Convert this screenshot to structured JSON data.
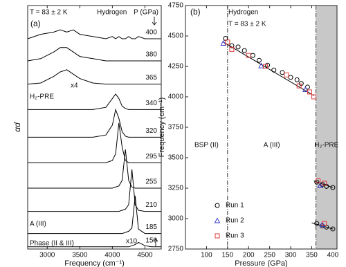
{
  "chart_data": [
    {
      "type": "line",
      "panel_label": "(a)",
      "subtitle": "T = 83 ± 2 K",
      "title": "Hydrogen",
      "series_title": "P (GPa)",
      "xlabel": "Frequency (cm⁻¹)",
      "ylabel": "αd",
      "xlim": [
        2700,
        4750
      ],
      "xticks": [
        3000,
        3500,
        4000,
        4500
      ],
      "ylim": [
        0,
        11
      ],
      "x": [
        2700,
        2900,
        3100,
        3200,
        3300,
        3400,
        3500,
        3700,
        3900,
        4000,
        4050,
        4100,
        4150,
        4200,
        4250,
        4300,
        4350,
        4400,
        4500,
        4600,
        4750
      ],
      "series": [
        {
          "name": "400",
          "color": "#000000",
          "values": [
            9.5,
            9.7,
            9.8,
            9.9,
            9.8,
            9.9,
            9.7,
            9.6,
            9.5,
            9.6,
            9.5,
            9.6,
            9.5,
            9.5,
            9.6,
            9.5,
            9.5,
            9.6,
            9.5,
            9.5,
            9.5
          ]
        },
        {
          "name": "380",
          "color": "#000000",
          "values": [
            8.5,
            8.6,
            8.9,
            9.1,
            9.1,
            8.9,
            8.7,
            8.6,
            8.5,
            8.5,
            8.5,
            8.5,
            8.5,
            8.5,
            8.5,
            8.5,
            8.5,
            8.5,
            8.5,
            8.5,
            8.5
          ]
        },
        {
          "name": "365",
          "color": "#000000",
          "values": [
            7.45,
            7.5,
            7.8,
            8.0,
            8.1,
            7.9,
            7.7,
            7.5,
            7.45,
            7.45,
            7.45,
            7.45,
            7.45,
            7.45,
            7.45,
            7.45,
            7.45,
            7.45,
            7.45,
            7.45,
            7.45
          ]
        },
        {
          "name": "340",
          "color": "#000000",
          "values": [
            6.3,
            6.3,
            6.3,
            6.3,
            6.3,
            6.3,
            6.3,
            6.3,
            6.4,
            6.8,
            7.0,
            6.8,
            6.45,
            6.35,
            6.3,
            6.3,
            6.3,
            6.3,
            6.3,
            6.3,
            6.3
          ]
        },
        {
          "name": "320",
          "color": "#000000",
          "values": [
            5.05,
            5.05,
            5.05,
            5.05,
            5.05,
            5.05,
            5.05,
            5.05,
            5.15,
            5.6,
            6.3,
            5.9,
            5.3,
            5.1,
            5.05,
            5.05,
            5.05,
            5.05,
            5.05,
            5.05,
            5.05
          ]
        },
        {
          "name": "295",
          "color": "#000000",
          "values": [
            3.9,
            3.9,
            3.9,
            3.9,
            3.9,
            3.9,
            3.9,
            3.9,
            3.9,
            4.0,
            4.3,
            5.7,
            4.6,
            4.0,
            3.9,
            3.9,
            3.9,
            3.9,
            3.9,
            3.9,
            3.9
          ]
        },
        {
          "name": "255",
          "color": "#000000",
          "values": [
            2.75,
            2.75,
            2.75,
            2.75,
            2.75,
            2.75,
            2.75,
            2.75,
            2.75,
            2.75,
            2.8,
            2.85,
            3.1,
            4.5,
            3.1,
            2.8,
            2.75,
            2.75,
            2.75,
            2.75,
            2.75
          ]
        },
        {
          "name": "210",
          "color": "#000000",
          "values": [
            1.7,
            1.7,
            1.7,
            1.7,
            1.7,
            1.7,
            1.7,
            1.7,
            1.7,
            1.7,
            1.7,
            1.7,
            1.75,
            1.8,
            2.0,
            3.6,
            2.0,
            1.75,
            1.7,
            1.7,
            1.7
          ]
        },
        {
          "name": "185",
          "color": "#000000",
          "values": [
            0.7,
            0.7,
            0.7,
            0.7,
            0.7,
            0.7,
            0.7,
            0.7,
            0.7,
            0.7,
            0.7,
            0.7,
            0.7,
            0.75,
            0.8,
            0.95,
            2.4,
            0.9,
            0.7,
            0.7,
            0.7
          ]
        },
        {
          "name": "150",
          "color": "#000000",
          "values": [
            0.1,
            0.1,
            0.1,
            0.1,
            0.1,
            0.1,
            0.1,
            0.1,
            0.1,
            0.1,
            0.1,
            0.1,
            0.1,
            0.1,
            0.1,
            0.15,
            0.2,
            0.3,
            0.15,
            0.1,
            0.1
          ]
        }
      ],
      "annotations": [
        "x4",
        "H₂-PRE",
        "A (III)",
        "Phase (II & III)",
        "x10"
      ]
    },
    {
      "type": "scatter",
      "panel_label": "(b)",
      "title": "Hydrogen",
      "subtitle": "T = 83 ± 2 K",
      "xlabel": "Pressure (GPa)",
      "ylabel": "Frequency (cm⁻¹)",
      "xlim": [
        50,
        410
      ],
      "xticks": [
        100,
        150,
        200,
        250,
        300,
        350,
        400
      ],
      "ylim": [
        2750,
        4750
      ],
      "yticks": [
        2750,
        3000,
        3250,
        3500,
        3750,
        4000,
        4250,
        4500,
        4750
      ],
      "phase_boundaries": [
        150,
        360
      ],
      "regions": [
        "BSP (II)",
        "A (III)",
        "H₂-PRE"
      ],
      "series": [
        {
          "name": "Run 1",
          "color": "#000000",
          "marker": "circle",
          "x": [
            145,
            160,
            175,
            190,
            210,
            225,
            245,
            260,
            280,
            300,
            315,
            325,
            340,
            362,
            375,
            385,
            400,
            362,
            375,
            385,
            400
          ],
          "values": [
            4480,
            4420,
            4410,
            4380,
            4340,
            4300,
            4260,
            4220,
            4200,
            4160,
            4140,
            4110,
            4080,
            3300,
            3280,
            3265,
            3255,
            2960,
            2940,
            2930,
            2915
          ]
        },
        {
          "name": "Run 2",
          "color": "#3a3ac8",
          "marker": "triangle",
          "x": [
            140,
            230,
            335,
            370,
            375
          ],
          "values": [
            4440,
            4255,
            4060,
            3270,
            2950
          ]
        },
        {
          "name": "Run 3",
          "color": "#e03a3a",
          "marker": "square",
          "x": [
            150,
            160,
            200,
            240,
            290,
            320,
            345,
            355,
            365,
            380,
            380
          ],
          "values": [
            4450,
            4390,
            4340,
            4250,
            4180,
            4090,
            4040,
            4000,
            3310,
            3290,
            2960
          ]
        }
      ],
      "fits": [
        {
          "x": [
            140,
            355
          ],
          "values": [
            4450,
            4010
          ]
        },
        {
          "x": [
            355,
            400
          ],
          "values": [
            3310,
            3255
          ]
        },
        {
          "x": [
            350,
            400
          ],
          "values": [
            2965,
            2915
          ]
        }
      ]
    }
  ]
}
